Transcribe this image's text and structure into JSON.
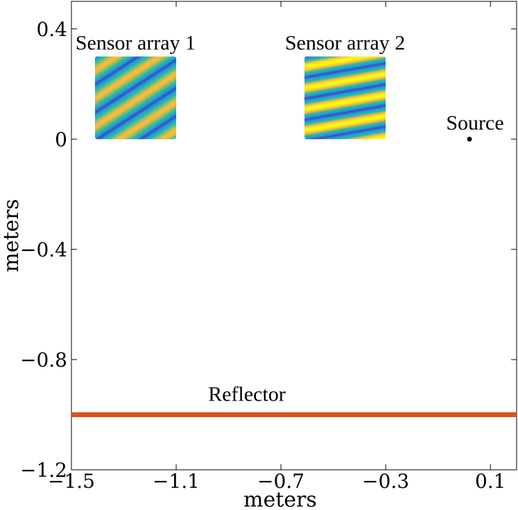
{
  "chart_data": {
    "type": "scatter",
    "title": "",
    "xlabel": "meters",
    "ylabel": "meters",
    "xlim": [
      -1.5,
      0.2
    ],
    "ylim": [
      -1.2,
      0.5
    ],
    "grid": false,
    "x_ticks": [
      {
        "value": -1.5,
        "label": "−1.5"
      },
      {
        "value": -1.1,
        "label": "−1.1"
      },
      {
        "value": -0.7,
        "label": "−0.7"
      },
      {
        "value": -0.3,
        "label": "−0.3"
      },
      {
        "value": 0.1,
        "label": "0.1"
      }
    ],
    "y_ticks": [
      {
        "value": 0.4,
        "label": "0.4"
      },
      {
        "value": 0,
        "label": "0"
      },
      {
        "value": -0.4,
        "label": "−0.4"
      },
      {
        "value": -0.8,
        "label": "−0.8"
      },
      {
        "value": -1.2,
        "label": "−1.2"
      }
    ],
    "source": {
      "label": "Source",
      "x": 0.02,
      "y": 0
    },
    "reflector": {
      "label": "Reflector",
      "y": -1.0,
      "x_range": [
        -1.5,
        0.2
      ],
      "color": "#d95319"
    },
    "arrays": [
      {
        "label": "Sensor array 1",
        "x_range": [
          -1.41,
          -1.1
        ],
        "y_range": [
          0,
          0.3
        ],
        "pattern": "diagonal"
      },
      {
        "label": "Sensor array 2",
        "x_range": [
          -0.61,
          -0.3
        ],
        "y_range": [
          0,
          0.3
        ],
        "pattern": "near-horizontal"
      }
    ],
    "colormap": [
      "#3b4cc0",
      "#1f9fd6",
      "#2bb9a8",
      "#8cc063",
      "#f7ba3d",
      "#f9f514"
    ]
  }
}
